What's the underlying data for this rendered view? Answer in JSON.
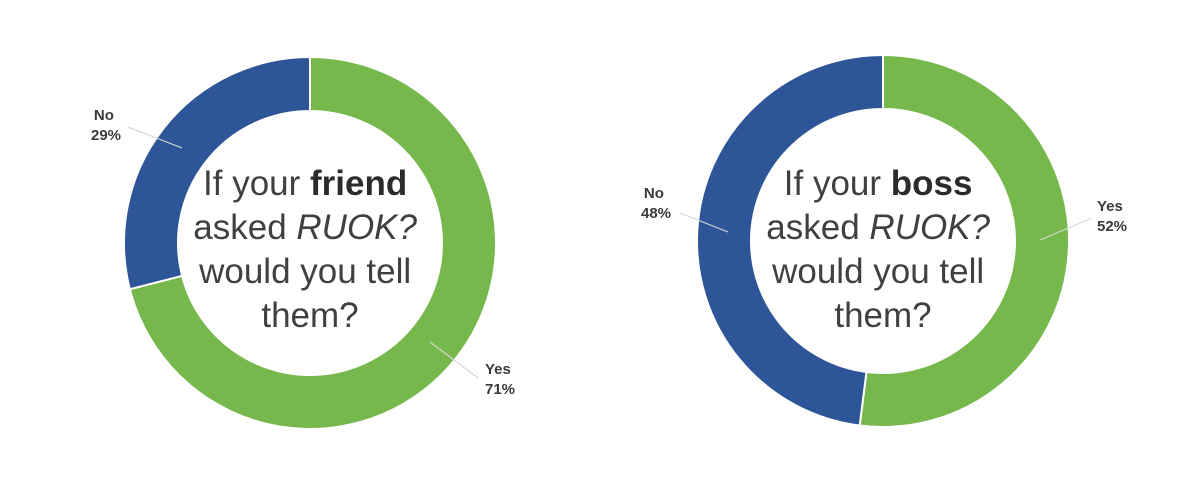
{
  "colors": {
    "yes": "#76b84b",
    "no": "#2e5597",
    "separator": "#ffffff"
  },
  "chart_data": [
    {
      "type": "pie",
      "variant": "donut",
      "center_text": {
        "line1_prefix": "If your ",
        "line1_bold": "friend",
        "line2_prefix": "asked ",
        "line2_italic": "RUOK?",
        "line3": "would you tell",
        "line4": "them?"
      },
      "slices": [
        {
          "label": "Yes",
          "value": 71,
          "value_label": "71%",
          "color": "#76b84b"
        },
        {
          "label": "No",
          "value": 29,
          "value_label": "29%",
          "color": "#2e5597"
        }
      ]
    },
    {
      "type": "pie",
      "variant": "donut",
      "center_text": {
        "line1_prefix": "If your ",
        "line1_bold": "boss",
        "line2_prefix": "asked ",
        "line2_italic": "RUOK?",
        "line3": "would you tell",
        "line4": "them?"
      },
      "slices": [
        {
          "label": "Yes",
          "value": 52,
          "value_label": "52%",
          "color": "#76b84b"
        },
        {
          "label": "No",
          "value": 48,
          "value_label": "48%",
          "color": "#2e5597"
        }
      ]
    }
  ]
}
